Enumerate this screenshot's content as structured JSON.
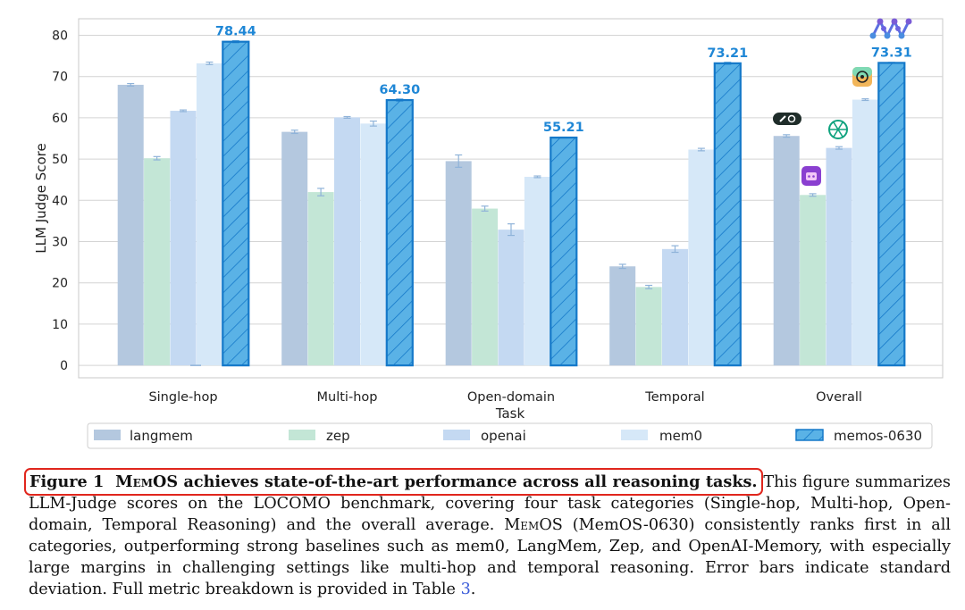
{
  "chart_data": {
    "type": "bar",
    "ylabel": "LLM Judge Score",
    "xlabel": "Task",
    "ylim": [
      -3,
      84
    ],
    "yticks": [
      0,
      10,
      20,
      30,
      40,
      50,
      60,
      70,
      80
    ],
    "grid": true,
    "categories": [
      "Single-hop",
      "Multi-hop",
      "Open-domain",
      "Temporal",
      "Overall"
    ],
    "series": [
      {
        "name": "langmem",
        "values": [
          68.0,
          56.6,
          49.5,
          24.0,
          55.6
        ],
        "errors": [
          0.3,
          0.4,
          1.5,
          0.5,
          0.3
        ],
        "color": "#b4c8df",
        "hatch": false
      },
      {
        "name": "zep",
        "values": [
          50.2,
          42.0,
          38.0,
          19.0,
          41.3
        ],
        "errors": [
          0.4,
          0.9,
          0.6,
          0.4,
          0.3
        ],
        "color": "#c3e6d6",
        "hatch": false
      },
      {
        "name": "openai",
        "values": [
          61.7,
          60.1,
          32.9,
          28.2,
          52.7
        ],
        "errors": [
          0.2,
          0.2,
          1.4,
          0.8,
          0.3
        ],
        "color": "#c4d9f2",
        "hatch": false
      },
      {
        "name": "mem0",
        "values": [
          73.2,
          58.6,
          45.7,
          52.3,
          64.4
        ],
        "errors": [
          0.3,
          0.6,
          0.2,
          0.3,
          0.2
        ],
        "color": "#d6e8f8",
        "hatch": false
      },
      {
        "name": "memos-0630",
        "values": [
          78.44,
          64.3,
          55.21,
          73.21,
          73.31
        ],
        "errors": [
          0.2,
          0.2,
          0.1,
          0.2,
          0.1
        ],
        "color": "#5ab2e6",
        "hatch": true
      }
    ],
    "data_labels": [
      "78.44",
      "64.30",
      "55.21",
      "73.21",
      "73.31"
    ],
    "data_label_color": "#1f87d6",
    "legend_position": "bottom"
  },
  "caption": {
    "label": "Figure 1",
    "head_sc": "MemOS",
    "head_rest": "achieves state-of-the-art performance across all reasoning tasks.",
    "body1": "This figure summarizes LLM-Judge scores on the LOCOMO benchmark, covering four task categories (Single-hop, Multi-hop, Open-domain, Temporal Reasoning) and the overall average.",
    "body2_sc": "MemOS",
    "body2": "(MemOS-0630) consistently ranks first in all categories, outperforming strong baselines such as mem0, LangMem, Zep, and OpenAI-Memory, with especially large margins in challenging settings like multi-hop and temporal reasoning. Error bars indicate standard deviation. Full metric breakdown is provided in Table",
    "table_ref": "3",
    "end": "."
  },
  "icons": [
    "langmem-logo-icon",
    "zep-logo-icon",
    "openai-logo-icon",
    "mem0-logo-icon",
    "memos-logo-icon"
  ]
}
